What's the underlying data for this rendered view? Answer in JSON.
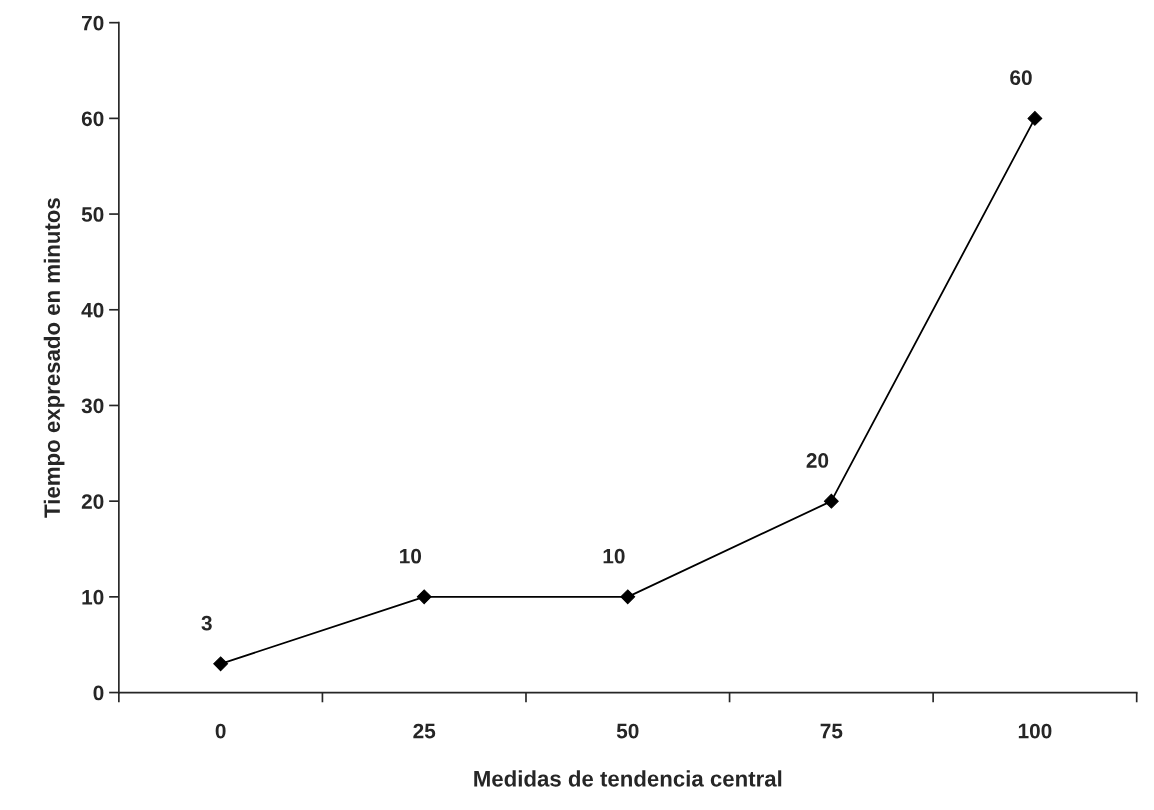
{
  "chart_data": {
    "type": "line",
    "xlabel": "Medidas de tendencia central",
    "ylabel": "Tiempo expresado en minutos",
    "categories": [
      "0",
      "25",
      "50",
      "75",
      "100"
    ],
    "series": [
      {
        "color": "#000000",
        "values": [
          3,
          10,
          10,
          20,
          60
        ]
      }
    ],
    "ylim": [
      0,
      70
    ],
    "yticks": [
      0,
      10,
      20,
      30,
      40,
      50,
      60,
      70
    ],
    "marker": "diamond",
    "line_style": "solid",
    "data_labels": true,
    "grid": false,
    "legend": false
  }
}
